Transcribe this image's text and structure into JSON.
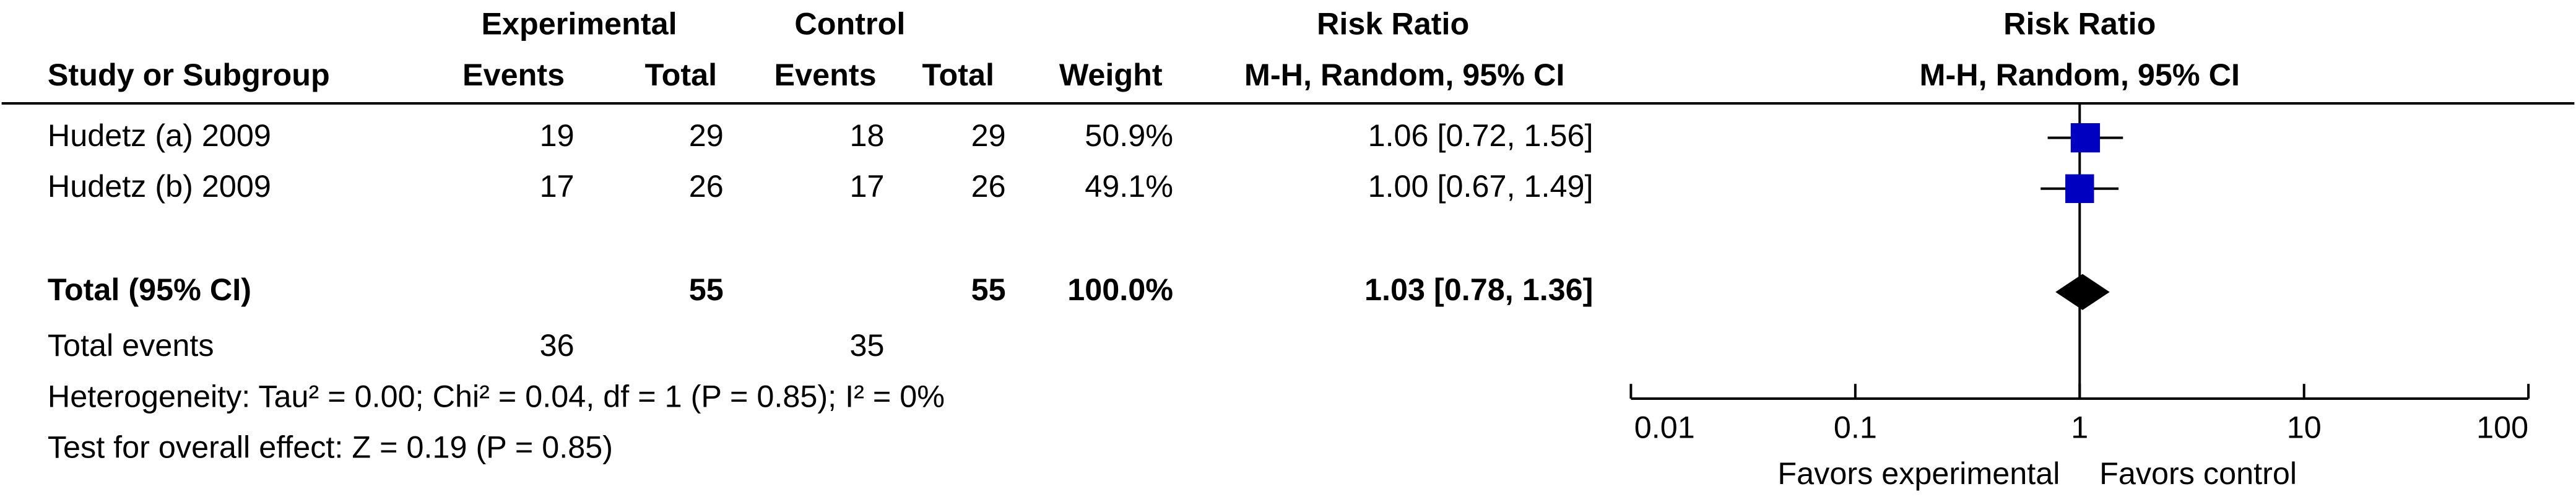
{
  "table": {
    "group_headers": [
      "Experimental",
      "Control",
      "Risk Ratio"
    ],
    "headers": [
      "Study or Subgroup",
      "Events",
      "Total",
      "Events",
      "Total",
      "Weight",
      "M-H, Random, 95% CI"
    ],
    "rows": [
      [
        "Hudetz (a) 2009",
        "19",
        "29",
        "18",
        "29",
        "50.9%",
        "1.06 [0.72, 1.56]"
      ],
      [
        "Hudetz (b) 2009",
        "17",
        "26",
        "17",
        "26",
        "49.1%",
        "1.00 [0.67, 1.49]"
      ]
    ],
    "total": {
      "label": "Total (95% CI)",
      "experimental_total": "55",
      "control_total": "55",
      "weight": "100.0%",
      "ci": "1.03 [0.78, 1.36]"
    },
    "total_events": {
      "label": "Total events",
      "experimental": "36",
      "control": "35"
    },
    "heterogeneity": "Heterogeneity: Tau² = 0.00; Chi² = 0.04, df = 1 (P = 0.85); I² = 0%",
    "overall_effect": "Test for overall effect: Z = 0.19 (P = 0.85)"
  },
  "chart_data": {
    "type": "forest",
    "title": "Risk Ratio",
    "subtitle": "M-H, Random, 95% CI",
    "log_scale": true,
    "xlim": [
      0.01,
      100
    ],
    "xticks": [
      0.01,
      0.1,
      1,
      10,
      100
    ],
    "values": [
      1.06,
      1.0
    ],
    "lower": [
      0.72,
      0.67
    ],
    "upper": [
      1.56,
      1.49
    ],
    "weights": [
      50.9,
      49.1
    ],
    "color": "#0000c0",
    "total": {
      "value": 1.03,
      "lower": 0.78,
      "upper": 1.36
    },
    "favors_left": "Favors experimental",
    "favors_right": "Favors control"
  }
}
